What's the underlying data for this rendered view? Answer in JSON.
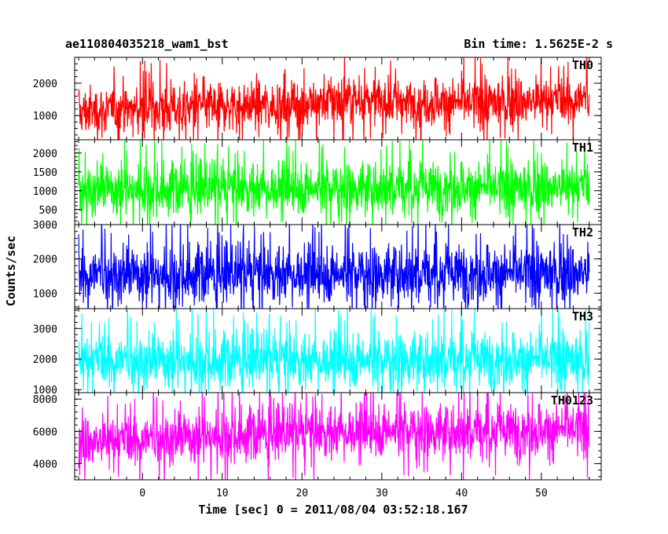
{
  "chart_data": {
    "type": "line",
    "title": "ae110804035218_wam1_bst",
    "subtitle": "Bin time: 1.5625E-2 s",
    "xlabel": "Time [sec] 0 = 2011/08/04 03:52:18.167",
    "ylabel": "Counts/sec",
    "xlim": [
      -8.5,
      57.5
    ],
    "data_x_range": [
      -8,
      56
    ],
    "xticks": [
      0,
      10,
      20,
      30,
      40,
      50
    ],
    "panels": [
      {
        "name": "TH0",
        "color": "#ff0000",
        "ylim": [
          250,
          2800
        ],
        "yticks": [
          1000,
          2000
        ],
        "trend": [
          [
            -8,
            1100
          ],
          [
            0,
            1200
          ],
          [
            10,
            1300
          ],
          [
            20,
            1350
          ],
          [
            24,
            1500
          ],
          [
            30,
            1450
          ],
          [
            40,
            1400
          ],
          [
            50,
            1450
          ],
          [
            56,
            1500
          ]
        ],
        "low_band": 500,
        "high_band": 2500
      },
      {
        "name": "TH1",
        "color": "#00ff00",
        "ylim": [
          100,
          2350
        ],
        "yticks": [
          500,
          1000,
          1500,
          2000
        ],
        "trend": [
          [
            -8,
            1050
          ],
          [
            56,
            1100
          ]
        ],
        "low_band": 300,
        "high_band": 2100
      },
      {
        "name": "TH2",
        "color": "#0000ff",
        "ylim": [
          550,
          3000
        ],
        "yticks": [
          1000,
          2000,
          3000
        ],
        "trend": [
          [
            -8,
            1550
          ],
          [
            56,
            1600
          ]
        ],
        "low_band": 650,
        "high_band": 2850
      },
      {
        "name": "TH3",
        "color": "#00ffff",
        "ylim": [
          900,
          3650
        ],
        "yticks": [
          1000,
          2000,
          3000
        ],
        "trend": [
          [
            -8,
            1950
          ],
          [
            56,
            2000
          ]
        ],
        "low_band": 1050,
        "high_band": 3400
      },
      {
        "name": "TH0123",
        "color": "#ff00ff",
        "ylim": [
          3000,
          8400
        ],
        "yticks": [
          4000,
          6000,
          8000
        ],
        "trend": [
          [
            -8,
            5300
          ],
          [
            0,
            5500
          ],
          [
            10,
            5800
          ],
          [
            20,
            5900
          ],
          [
            30,
            6100
          ],
          [
            40,
            6000
          ],
          [
            50,
            6100
          ],
          [
            56,
            6200
          ]
        ],
        "low_band": 3700,
        "high_band": 8000
      }
    ]
  }
}
